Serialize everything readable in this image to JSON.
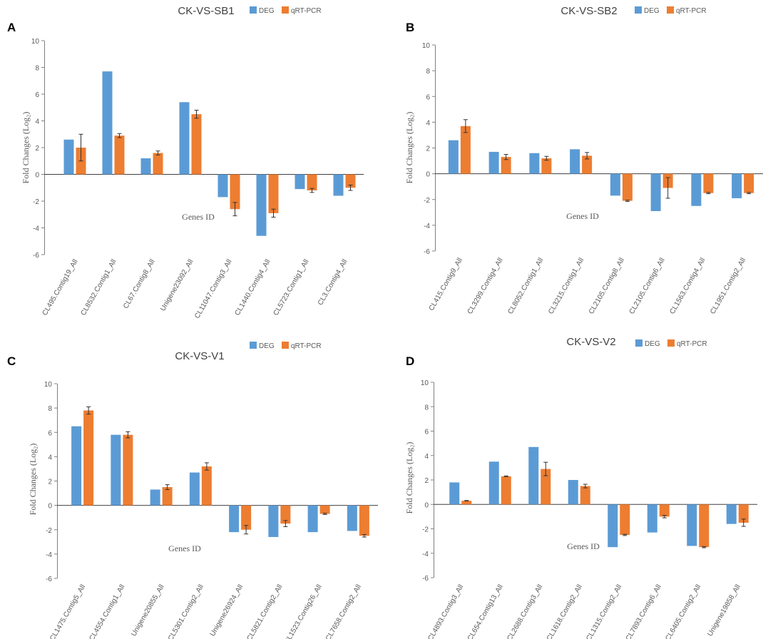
{
  "colors": {
    "deg": "#5B9BD5",
    "qpcr": "#ED7D31",
    "axis": "#808080",
    "text": "#595959",
    "title": "#404040"
  },
  "chart_data": [
    {
      "type": "bar",
      "panel_label": "A",
      "title": "CK-VS-SB1",
      "ylabel": "Fold Changes (Log₂)",
      "xlabel": "Genes ID",
      "ylim": [
        -6,
        10
      ],
      "yticks": [
        "-6",
        "-4",
        "-2",
        "0",
        "2",
        "4",
        "6",
        "8",
        "10"
      ],
      "categories": [
        "CL495.Contig19_All",
        "CL8532.Contig1_All",
        "CL67.Contig8_All",
        "Unigene23092_All",
        "CL11047.Contig3_All",
        "CL1440.Contig4_All",
        "CL5723.Contig1_All",
        "CL3.Contig4_All"
      ],
      "series": [
        {
          "name": "DEG",
          "values": [
            2.6,
            7.7,
            1.2,
            5.4,
            -1.7,
            -4.6,
            -1.1,
            -1.6
          ]
        },
        {
          "name": "qRT-PCR",
          "values": [
            2.0,
            2.9,
            1.6,
            4.5,
            -2.6,
            -2.9,
            -1.2,
            -1.0
          ],
          "errors": [
            1.0,
            0.15,
            0.15,
            0.3,
            0.5,
            0.3,
            0.15,
            0.2
          ]
        }
      ],
      "legend": "top-center"
    },
    {
      "type": "bar",
      "panel_label": "B",
      "title": "CK-VS-SB2",
      "ylabel": "Fold Changes (Log₂)",
      "xlabel": "Genes ID",
      "ylim": [
        -6,
        10
      ],
      "yticks": [
        "-6",
        "-4",
        "-2",
        "0",
        "2",
        "4",
        "6",
        "8",
        "10"
      ],
      "categories": [
        "CL415.Contig9_All",
        "CL3299.Contig4_All",
        "CL8052.Contig1_All",
        "CL3215.Contig1_All",
        "CL2105.Contig8_All",
        "CL2105.Contig6_All",
        "CL1563.Contig4_All",
        "CL1951.Contig2_All"
      ],
      "series": [
        {
          "name": "DEG",
          "values": [
            2.6,
            1.7,
            1.6,
            1.9,
            -1.7,
            -2.9,
            -2.5,
            -1.9
          ]
        },
        {
          "name": "qRT-PCR",
          "values": [
            3.7,
            1.3,
            1.2,
            1.4,
            -2.1,
            -1.1,
            -1.5,
            -1.5
          ],
          "errors": [
            0.5,
            0.2,
            0.15,
            0.25,
            0.05,
            0.8,
            0.05,
            0.05
          ]
        }
      ],
      "legend": "top-center"
    },
    {
      "type": "bar",
      "panel_label": "C",
      "title": "CK-VS-V1",
      "ylabel": "Fold Changes (Log₂)",
      "xlabel": "Genes ID",
      "ylim": [
        -6,
        10
      ],
      "yticks": [
        "-6",
        "-4",
        "-2",
        "0",
        "2",
        "4",
        "6",
        "8",
        "10"
      ],
      "categories": [
        "CL1475.Contig5_All",
        "CL4554.Contig1_All",
        "Unigene20855_All",
        "CL5301.Contig2_All",
        "Unigene26924_All",
        "CL5821.Contig2_All",
        "CL1523.Contig26_All",
        "CL7658.Contig2_All"
      ],
      "series": [
        {
          "name": "DEG",
          "values": [
            6.5,
            5.8,
            1.3,
            2.7,
            -2.2,
            -2.6,
            -2.2,
            -2.1
          ]
        },
        {
          "name": "qRT-PCR",
          "values": [
            7.8,
            5.8,
            1.5,
            3.2,
            -2.0,
            -1.5,
            -0.7,
            -2.5
          ],
          "errors": [
            0.3,
            0.25,
            0.2,
            0.3,
            0.35,
            0.25,
            0.05,
            0.1
          ]
        }
      ],
      "legend": "top-center"
    },
    {
      "type": "bar",
      "panel_label": "D",
      "title": "CK-VS-V2",
      "ylabel": "Fold Changes (Log₂)",
      "xlabel": "Genes ID",
      "ylim": [
        -6,
        10
      ],
      "yticks": [
        "-6",
        "-4",
        "-2",
        "0",
        "2",
        "4",
        "6",
        "8",
        "10"
      ],
      "categories": [
        "CL4893.Contig3_All",
        "CL654.Contig13_All",
        "CL2688.Contig3_All",
        "CL1618.Contig2_All",
        "CL1315.Contig2_All",
        "CL7893.Contig6_All",
        "CL6405.Contig2_All",
        "Unigene19858_All"
      ],
      "series": [
        {
          "name": "DEG",
          "values": [
            1.8,
            3.5,
            4.7,
            2.0,
            -3.5,
            -2.3,
            -3.4,
            -1.6
          ]
        },
        {
          "name": "qRT-PCR",
          "values": [
            0.3,
            2.3,
            2.9,
            1.5,
            -2.5,
            -1.0,
            -3.5,
            -1.5
          ],
          "errors": [
            0.02,
            0.03,
            0.55,
            0.15,
            0.05,
            0.1,
            0.05,
            0.3
          ]
        }
      ],
      "legend": "top-center"
    }
  ]
}
